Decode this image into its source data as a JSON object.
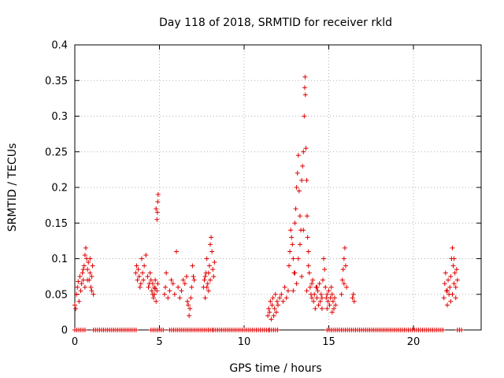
{
  "chart_data": {
    "type": "scatter",
    "title": "Day 118 of 2018, SRMTID for receiver rkld",
    "xlabel": "GPS time / hours",
    "ylabel": "SRMTID / TECUs",
    "xlim": [
      0,
      24
    ],
    "ylim": [
      0,
      0.4
    ],
    "xticks": [
      0,
      5,
      10,
      15,
      20
    ],
    "yticks": [
      0,
      0.05,
      0.1,
      0.15,
      0.2,
      0.25,
      0.3,
      0.35,
      0.4
    ],
    "xtick_labels": [
      "0",
      "5",
      "10",
      "15",
      "20"
    ],
    "ytick_labels": [
      "0",
      "0.05",
      "0.1",
      "0.15",
      "0.2",
      "0.25",
      "0.3",
      "0.35",
      "0.4"
    ],
    "grid": true,
    "marker": "+",
    "color": "#e00000",
    "series": [
      {
        "name": "SRMTID",
        "points": [
          [
            0.0,
            0.035
          ],
          [
            0.05,
            0.03
          ],
          [
            0.1,
            0.05
          ],
          [
            0.15,
            0.06
          ],
          [
            0.2,
            0.068
          ],
          [
            0.25,
            0.04
          ],
          [
            0.3,
            0.075
          ],
          [
            0.35,
            0.055
          ],
          [
            0.4,
            0.065
          ],
          [
            0.45,
            0.08
          ],
          [
            0.5,
            0.07
          ],
          [
            0.55,
            0.09
          ],
          [
            0.6,
            0.105
          ],
          [
            0.65,
            0.115
          ],
          [
            0.7,
            0.1
          ],
          [
            0.75,
            0.085
          ],
          [
            0.8,
            0.095
          ],
          [
            0.85,
            0.07
          ],
          [
            0.9,
            0.08
          ],
          [
            0.95,
            0.06
          ],
          [
            1.0,
            0.075
          ],
          [
            1.05,
            0.09
          ],
          [
            1.1,
            0.05
          ],
          [
            0.6,
            0.06
          ],
          [
            0.75,
            0.07
          ],
          [
            0.9,
            0.1
          ],
          [
            1.0,
            0.055
          ],
          [
            0.5,
            0.085
          ],
          [
            3.6,
            0.08
          ],
          [
            3.65,
            0.09
          ],
          [
            3.7,
            0.07
          ],
          [
            3.75,
            0.085
          ],
          [
            3.8,
            0.075
          ],
          [
            3.85,
            0.06
          ],
          [
            3.9,
            0.065
          ],
          [
            3.95,
            0.1
          ],
          [
            4.0,
            0.08
          ],
          [
            4.05,
            0.07
          ],
          [
            4.1,
            0.09
          ],
          [
            4.2,
            0.105
          ],
          [
            4.3,
            0.075
          ],
          [
            4.35,
            0.06
          ],
          [
            4.4,
            0.065
          ],
          [
            4.45,
            0.08
          ],
          [
            4.5,
            0.07
          ],
          [
            4.55,
            0.055
          ],
          [
            4.6,
            0.05
          ],
          [
            4.65,
            0.045
          ],
          [
            4.7,
            0.06
          ],
          [
            4.75,
            0.07
          ],
          [
            4.8,
            0.04
          ],
          [
            4.85,
            0.055
          ],
          [
            4.9,
            0.065
          ],
          [
            4.6,
            0.065
          ],
          [
            4.7,
            0.05
          ],
          [
            4.75,
            0.058
          ],
          [
            4.85,
            0.155
          ],
          [
            4.88,
            0.165
          ],
          [
            4.9,
            0.18
          ],
          [
            4.92,
            0.19
          ],
          [
            4.8,
            0.17
          ],
          [
            5.3,
            0.05
          ],
          [
            5.35,
            0.06
          ],
          [
            5.4,
            0.08
          ],
          [
            5.5,
            0.045
          ],
          [
            5.6,
            0.055
          ],
          [
            5.7,
            0.07
          ],
          [
            5.8,
            0.065
          ],
          [
            5.9,
            0.05
          ],
          [
            6.0,
            0.11
          ],
          [
            6.1,
            0.06
          ],
          [
            6.2,
            0.045
          ],
          [
            6.3,
            0.055
          ],
          [
            6.4,
            0.07
          ],
          [
            6.5,
            0.065
          ],
          [
            6.6,
            0.075
          ],
          [
            6.65,
            0.04
          ],
          [
            6.7,
            0.035
          ],
          [
            6.75,
            0.02
          ],
          [
            6.8,
            0.03
          ],
          [
            6.85,
            0.045
          ],
          [
            6.9,
            0.06
          ],
          [
            7.0,
            0.075
          ],
          [
            6.95,
            0.09
          ],
          [
            7.05,
            0.07
          ],
          [
            7.6,
            0.06
          ],
          [
            7.65,
            0.07
          ],
          [
            7.7,
            0.045
          ],
          [
            7.75,
            0.08
          ],
          [
            7.8,
            0.1
          ],
          [
            7.85,
            0.065
          ],
          [
            7.9,
            0.055
          ],
          [
            7.95,
            0.09
          ],
          [
            8.0,
            0.12
          ],
          [
            8.05,
            0.13
          ],
          [
            8.1,
            0.11
          ],
          [
            8.15,
            0.085
          ],
          [
            8.2,
            0.075
          ],
          [
            8.25,
            0.095
          ],
          [
            7.7,
            0.075
          ],
          [
            7.8,
            0.06
          ],
          [
            7.9,
            0.08
          ],
          [
            8.0,
            0.07
          ],
          [
            11.4,
            0.02
          ],
          [
            11.45,
            0.03
          ],
          [
            11.5,
            0.025
          ],
          [
            11.55,
            0.04
          ],
          [
            11.6,
            0.015
          ],
          [
            11.65,
            0.035
          ],
          [
            11.7,
            0.045
          ],
          [
            11.75,
            0.02
          ],
          [
            11.8,
            0.03
          ],
          [
            11.85,
            0.05
          ],
          [
            11.9,
            0.025
          ],
          [
            11.95,
            0.04
          ],
          [
            12.0,
            0.035
          ],
          [
            12.1,
            0.045
          ],
          [
            12.2,
            0.05
          ],
          [
            12.3,
            0.04
          ],
          [
            12.4,
            0.06
          ],
          [
            12.5,
            0.045
          ],
          [
            12.6,
            0.055
          ],
          [
            12.65,
            0.09
          ],
          [
            12.7,
            0.11
          ],
          [
            12.75,
            0.14
          ],
          [
            12.8,
            0.13
          ],
          [
            12.85,
            0.12
          ],
          [
            12.9,
            0.1
          ],
          [
            12.95,
            0.08
          ],
          [
            13.0,
            0.15
          ],
          [
            13.05,
            0.17
          ],
          [
            13.1,
            0.2
          ],
          [
            13.15,
            0.22
          ],
          [
            13.2,
            0.245
          ],
          [
            13.25,
            0.195
          ],
          [
            13.3,
            0.16
          ],
          [
            13.35,
            0.14
          ],
          [
            13.4,
            0.21
          ],
          [
            13.45,
            0.23
          ],
          [
            13.5,
            0.25
          ],
          [
            13.55,
            0.3
          ],
          [
            13.58,
            0.34
          ],
          [
            13.6,
            0.355
          ],
          [
            13.62,
            0.33
          ],
          [
            13.65,
            0.255
          ],
          [
            13.7,
            0.21
          ],
          [
            13.72,
            0.16
          ],
          [
            13.75,
            0.13
          ],
          [
            13.8,
            0.11
          ],
          [
            13.85,
            0.08
          ],
          [
            13.9,
            0.06
          ],
          [
            13.95,
            0.05
          ],
          [
            14.0,
            0.045
          ],
          [
            14.05,
            0.07
          ],
          [
            14.1,
            0.04
          ],
          [
            14.15,
            0.05
          ],
          [
            14.2,
            0.03
          ],
          [
            14.25,
            0.06
          ],
          [
            14.3,
            0.045
          ],
          [
            14.35,
            0.055
          ],
          [
            14.4,
            0.035
          ],
          [
            14.45,
            0.065
          ],
          [
            14.5,
            0.04
          ],
          [
            14.55,
            0.05
          ],
          [
            14.6,
            0.045
          ],
          [
            14.65,
            0.07
          ],
          [
            14.7,
            0.1
          ],
          [
            14.75,
            0.085
          ],
          [
            14.8,
            0.06
          ],
          [
            14.85,
            0.045
          ],
          [
            14.9,
            0.05
          ],
          [
            14.95,
            0.04
          ],
          [
            15.0,
            0.055
          ],
          [
            15.05,
            0.035
          ],
          [
            15.1,
            0.045
          ],
          [
            15.15,
            0.06
          ],
          [
            15.2,
            0.05
          ],
          [
            15.25,
            0.04
          ],
          [
            15.3,
            0.03
          ],
          [
            15.35,
            0.045
          ],
          [
            15.4,
            0.035
          ],
          [
            13.0,
            0.08
          ],
          [
            13.2,
            0.1
          ],
          [
            13.3,
            0.12
          ],
          [
            13.5,
            0.14
          ],
          [
            13.8,
            0.09
          ],
          [
            12.9,
            0.055
          ],
          [
            13.1,
            0.065
          ],
          [
            13.4,
            0.075
          ],
          [
            13.7,
            0.055
          ],
          [
            14.0,
            0.065
          ],
          [
            14.3,
            0.06
          ],
          [
            14.6,
            0.03
          ],
          [
            14.9,
            0.03
          ],
          [
            15.2,
            0.025
          ],
          [
            15.8,
            0.07
          ],
          [
            15.85,
            0.085
          ],
          [
            15.9,
            0.1
          ],
          [
            15.95,
            0.115
          ],
          [
            16.0,
            0.09
          ],
          [
            16.05,
            0.06
          ],
          [
            15.75,
            0.05
          ],
          [
            15.9,
            0.065
          ],
          [
            16.4,
            0.045
          ],
          [
            16.45,
            0.05
          ],
          [
            16.5,
            0.04
          ],
          [
            21.8,
            0.045
          ],
          [
            21.85,
            0.065
          ],
          [
            21.9,
            0.08
          ],
          [
            21.95,
            0.055
          ],
          [
            22.0,
            0.035
          ],
          [
            22.05,
            0.07
          ],
          [
            22.1,
            0.05
          ],
          [
            22.15,
            0.06
          ],
          [
            22.2,
            0.075
          ],
          [
            22.25,
            0.1
          ],
          [
            22.3,
            0.115
          ],
          [
            22.35,
            0.09
          ],
          [
            22.4,
            0.065
          ],
          [
            22.45,
            0.08
          ],
          [
            22.5,
            0.045
          ],
          [
            22.55,
            0.085
          ],
          [
            22.6,
            0.07
          ],
          [
            22.0,
            0.055
          ],
          [
            22.2,
            0.04
          ],
          [
            22.4,
            0.1
          ],
          [
            22.5,
            0.06
          ],
          [
            22.3,
            0.05
          ]
        ]
      }
    ],
    "zero_bands": [
      [
        0.0,
        0.6
      ],
      [
        1.1,
        3.7
      ],
      [
        4.5,
        5.3
      ],
      [
        5.6,
        8.2
      ],
      [
        8.2,
        11.5
      ],
      [
        11.5,
        12.0
      ],
      [
        14.9,
        21.8
      ],
      [
        22.6,
        22.9
      ]
    ]
  }
}
